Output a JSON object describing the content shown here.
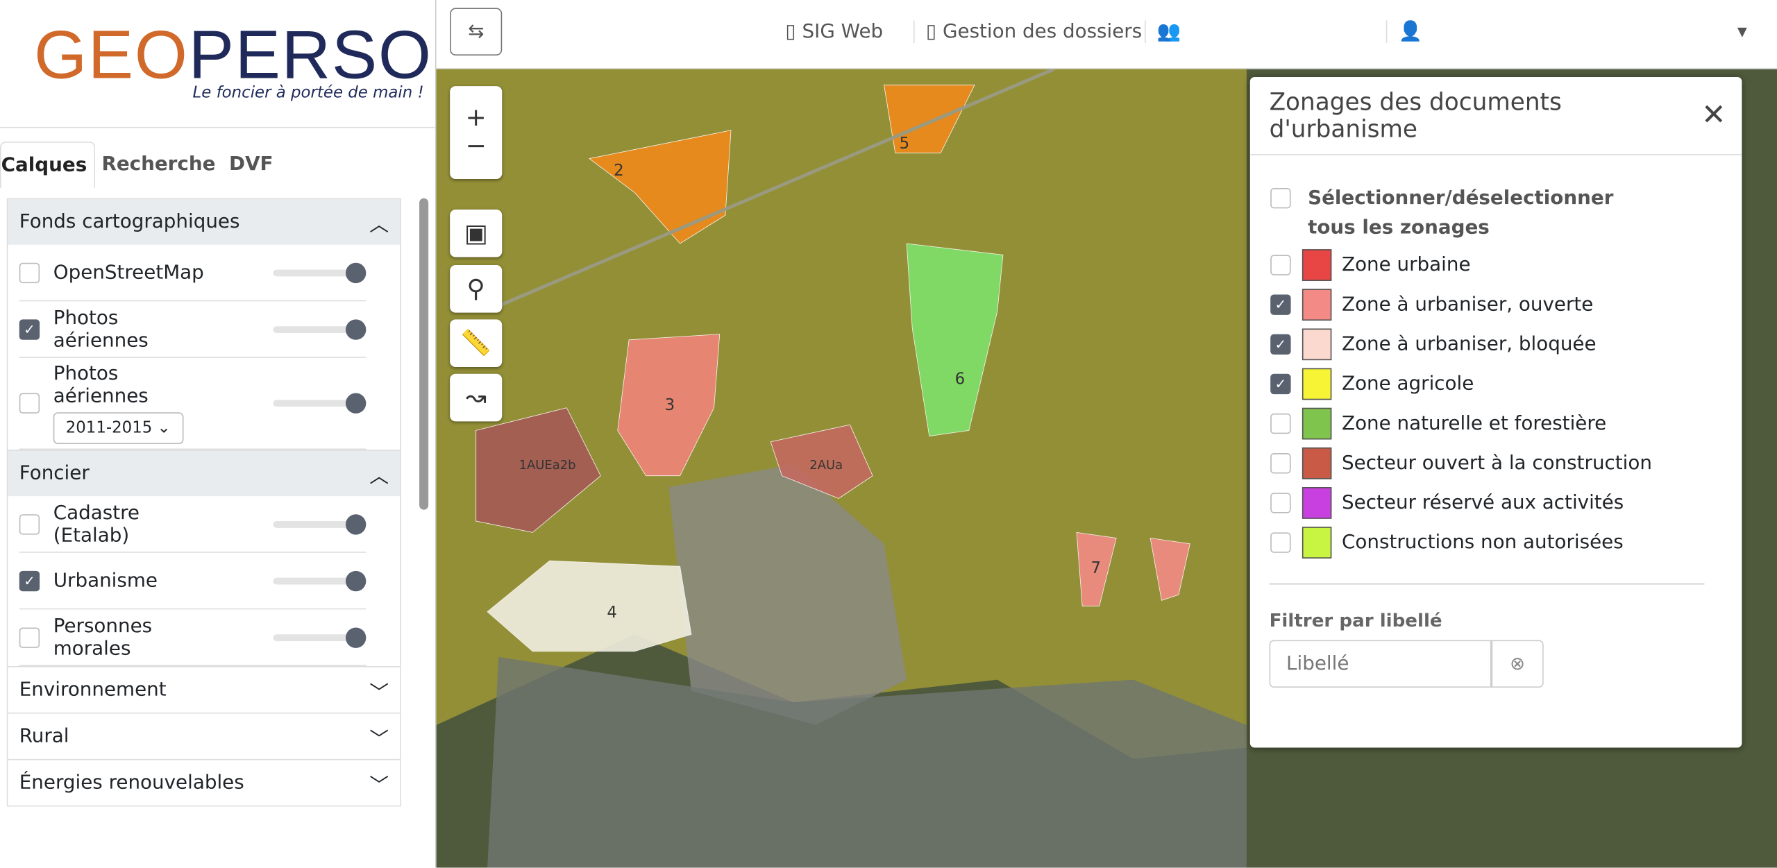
{
  "logo": {
    "part1": "GEO",
    "part2": "PERSO",
    "tagline": "Le foncier à portée de main !"
  },
  "tabs": [
    "Calques",
    "Recherche",
    "DVF"
  ],
  "sections": [
    {
      "title": "Fonds cartographiques",
      "open": true,
      "items": [
        {
          "label": "OpenStreetMap",
          "checked": false
        },
        {
          "label": "Photos aériennes",
          "checked": true
        },
        {
          "label": "Photos aériennes",
          "checked": false,
          "select": "2011-2015"
        }
      ]
    },
    {
      "title": "Foncier",
      "open": true,
      "items": [
        {
          "label": "Cadastre (Etalab)",
          "checked": false
        },
        {
          "label": "Urbanisme",
          "checked": true
        },
        {
          "label": "Personnes morales",
          "checked": false
        }
      ]
    },
    {
      "title": "Environnement",
      "open": false
    },
    {
      "title": "Rural",
      "open": false
    },
    {
      "title": "Énergies renouvelables",
      "open": false
    }
  ],
  "nav": [
    "SIG Web",
    "Gestion des dossiers"
  ],
  "map_labels": [
    "2",
    "5",
    "3",
    "6",
    "4",
    "7",
    "1AUEa2b",
    "2AUa"
  ],
  "panel": {
    "title": "Zonages des documents d'urbanisme",
    "select_all": "Sélectionner/déselectionner tous les zonages",
    "zones": [
      {
        "label": "Zone urbaine",
        "color": "#e84545",
        "checked": false
      },
      {
        "label": "Zone à urbaniser, ouverte",
        "color": "#f48a86",
        "checked": true
      },
      {
        "label": "Zone à urbaniser, bloquée",
        "color": "#fbd9cf",
        "checked": true
      },
      {
        "label": "Zone agricole",
        "color": "#f7f435",
        "checked": true
      },
      {
        "label": "Zone naturelle et forestière",
        "color": "#7fc44c",
        "checked": false
      },
      {
        "label": "Secteur ouvert à la construction",
        "color": "#c95a45",
        "checked": false
      },
      {
        "label": "Secteur réservé aux activités",
        "color": "#c840e0",
        "checked": false
      },
      {
        "label": "Constructions non autorisées",
        "color": "#c8f542",
        "checked": false
      }
    ],
    "filter_label": "Filtrer par libellé",
    "filter_placeholder": "Libellé"
  }
}
